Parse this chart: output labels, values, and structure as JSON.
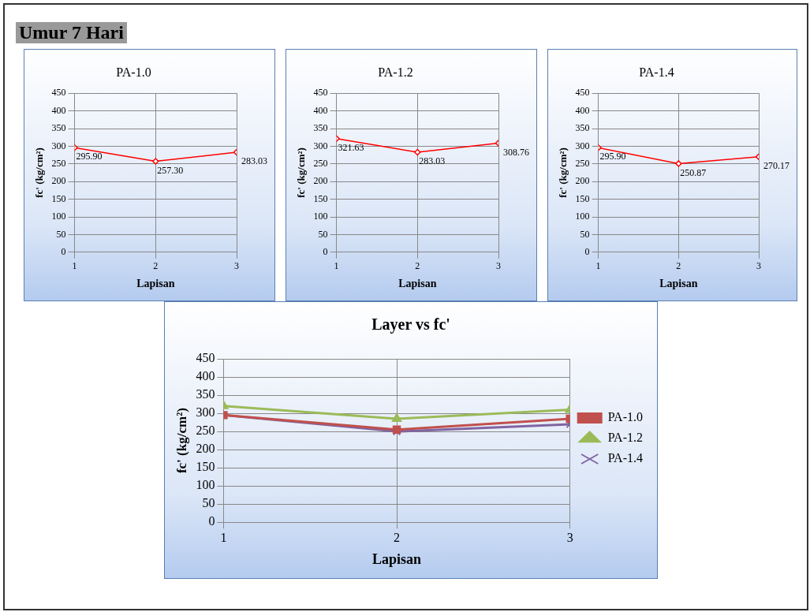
{
  "chart_data": [
    {
      "type": "other",
      "title": "Umur 7 Hari"
    },
    {
      "type": "line",
      "title": "PA-1.0",
      "xlabel": "Lapisan",
      "ylabel": "fc' (kg/cm²)",
      "x": [
        1,
        2,
        3
      ],
      "xlim": [
        1,
        3
      ],
      "xticks": [
        1,
        2,
        3
      ],
      "ylim": [
        0,
        450
      ],
      "yticks": [
        0,
        50,
        100,
        150,
        200,
        250,
        300,
        350,
        400,
        450
      ],
      "grid": true,
      "legend": false,
      "marker": "diamond",
      "series": [
        {
          "color": "#ff0000",
          "values": [
            295.9,
            257.3,
            283.03
          ],
          "value_labels": [
            "295.90",
            "257.30",
            "283.03"
          ]
        }
      ]
    },
    {
      "type": "line",
      "title": "PA-1.2",
      "xlabel": "Lapisan",
      "ylabel": "fc' (kg/cm²)",
      "x": [
        1,
        2,
        3
      ],
      "xlim": [
        1,
        3
      ],
      "xticks": [
        1,
        2,
        3
      ],
      "ylim": [
        0,
        450
      ],
      "yticks": [
        0,
        50,
        100,
        150,
        200,
        250,
        300,
        350,
        400,
        450
      ],
      "grid": true,
      "legend": false,
      "marker": "diamond",
      "series": [
        {
          "color": "#ff0000",
          "values": [
            321.63,
            283.03,
            308.76
          ],
          "value_labels": [
            "321.63",
            "283.03",
            "308.76"
          ]
        }
      ]
    },
    {
      "type": "line",
      "title": "PA-1.4",
      "xlabel": "Lapisan",
      "ylabel": "fc' (kg/cm²)",
      "x": [
        1,
        2,
        3
      ],
      "xlim": [
        1,
        3
      ],
      "xticks": [
        1,
        2,
        3
      ],
      "ylim": [
        0,
        450
      ],
      "yticks": [
        0,
        50,
        100,
        150,
        200,
        250,
        300,
        350,
        400,
        450
      ],
      "grid": true,
      "legend": false,
      "marker": "diamond",
      "series": [
        {
          "color": "#ff0000",
          "values": [
            295.9,
            250.87,
            270.17
          ],
          "value_labels": [
            "295.90",
            "250.87",
            "270.17"
          ]
        }
      ]
    },
    {
      "type": "line",
      "title": "Layer vs fc'",
      "xlabel": "Lapisan",
      "ylabel": "fc' (kg/cm²)",
      "x": [
        1,
        2,
        3
      ],
      "xlim": [
        1,
        3
      ],
      "xticks": [
        1,
        2,
        3
      ],
      "ylim": [
        0,
        450
      ],
      "yticks": [
        0,
        50,
        100,
        150,
        200,
        250,
        300,
        350,
        400,
        450
      ],
      "grid": true,
      "legend": "right",
      "series": [
        {
          "name": "PA-1.0",
          "color": "#c0504d",
          "marker": "square",
          "values": [
            295,
            255,
            285
          ]
        },
        {
          "name": "PA-1.2",
          "color": "#9bbb59",
          "marker": "triangle",
          "values": [
            320,
            285,
            310
          ]
        },
        {
          "name": "PA-1.4",
          "color": "#8064a2",
          "marker": "cross",
          "values": [
            295,
            250,
            270
          ]
        }
      ]
    }
  ]
}
